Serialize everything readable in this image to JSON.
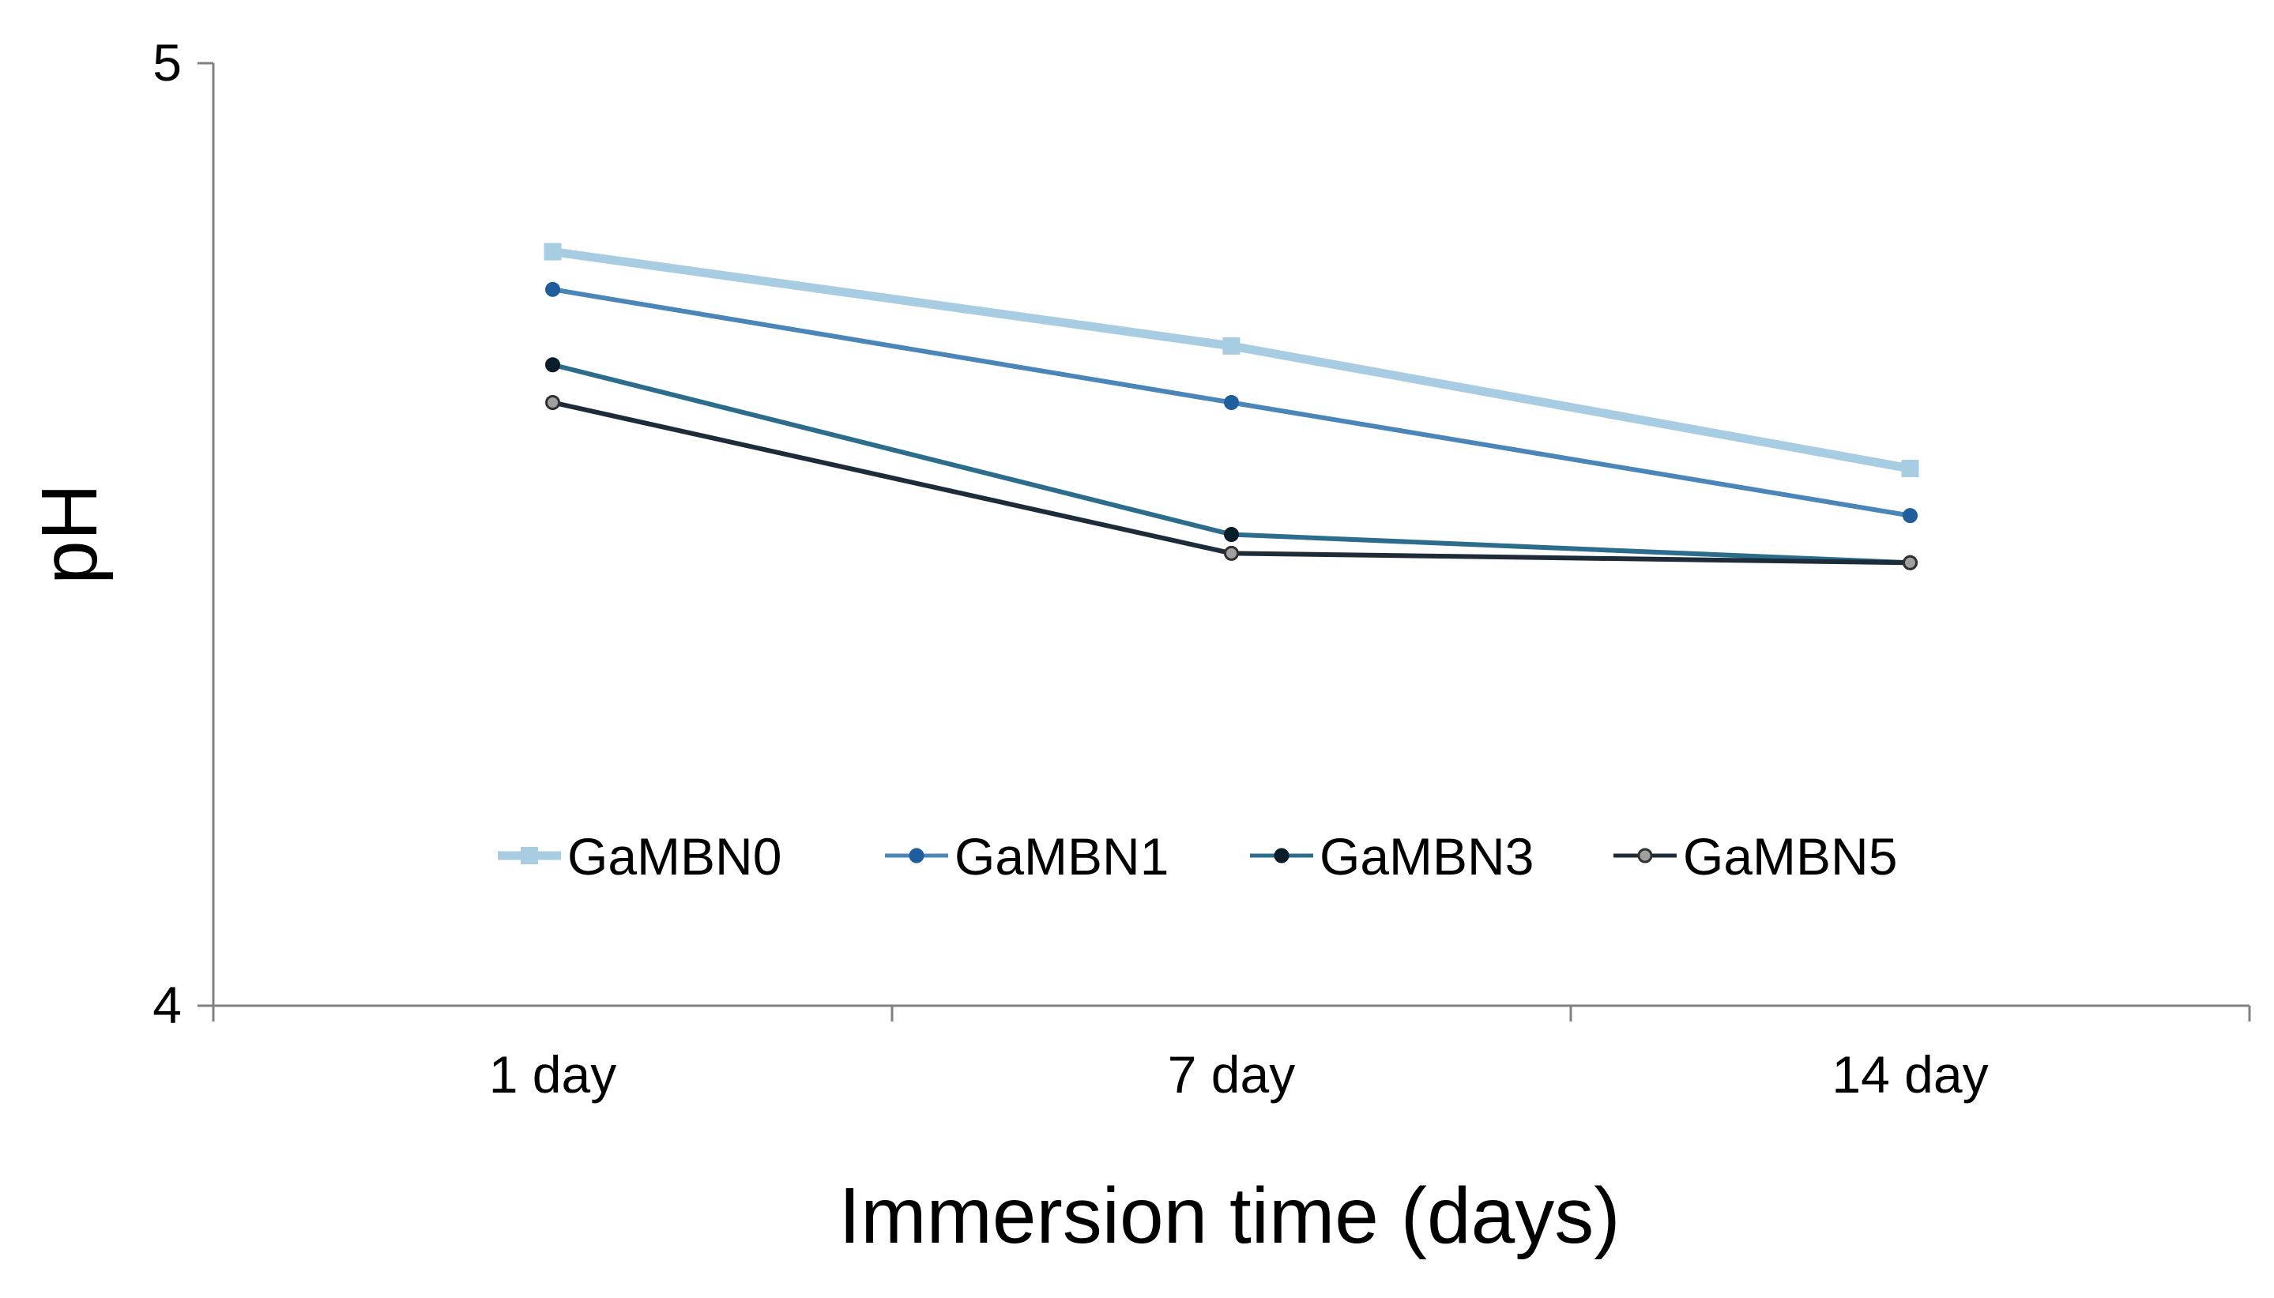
{
  "chart_data": {
    "type": "line",
    "title": "",
    "xlabel": "Immersion time (days)",
    "ylabel": "pH",
    "categories": [
      "1 day",
      "7 day",
      "14 day"
    ],
    "ylim": [
      4,
      5
    ],
    "yticks": [
      "4",
      "5"
    ],
    "grid": false,
    "legend_position": "bottom-center-inside",
    "series": [
      {
        "name": "GaMBN0",
        "values": [
          4.8,
          4.7,
          4.57
        ],
        "color": "#a8cde3",
        "marker": "square",
        "marker_fill": "#a8cde3",
        "marker_stroke": "#a8cde3"
      },
      {
        "name": "GaMBN1",
        "values": [
          4.76,
          4.64,
          4.52
        ],
        "color": "#4a86b8",
        "marker": "circle",
        "marker_fill": "#1f5e9c",
        "marker_stroke": "#1f5e9c"
      },
      {
        "name": "GaMBN3",
        "values": [
          4.68,
          4.5,
          4.47
        ],
        "color": "#2c6c8c",
        "marker": "circle",
        "marker_fill": "#0a1e2a",
        "marker_stroke": "#0a1e2a"
      },
      {
        "name": "GaMBN5",
        "values": [
          4.64,
          4.48,
          4.47
        ],
        "color": "#1e2c3a",
        "marker": "circle",
        "marker_fill": "#a0a0a0",
        "marker_stroke": "#303030"
      }
    ]
  }
}
